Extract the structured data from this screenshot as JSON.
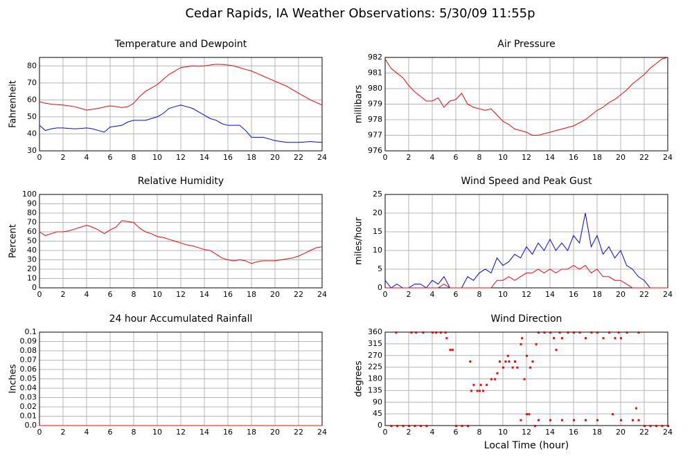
{
  "title": "Cedar Rapids, IA Weather Observations: 5/30/09 11:55p",
  "chart_data": [
    {
      "type": "line",
      "title": "Temperature and Dewpoint",
      "ylabel": "Fahrenheit",
      "x": [
        0,
        0.5,
        1,
        1.5,
        2,
        2.5,
        3,
        3.5,
        4,
        4.5,
        5,
        5.5,
        6,
        6.5,
        7,
        7.5,
        8,
        8.5,
        9,
        9.5,
        10,
        10.5,
        11,
        11.5,
        12,
        12.5,
        13,
        13.5,
        14,
        14.5,
        15,
        15.5,
        16,
        16.5,
        17,
        17.5,
        18,
        18.5,
        19,
        19.5,
        20,
        20.5,
        21,
        21.5,
        22,
        22.5,
        23,
        23.5,
        24
      ],
      "series": [
        {
          "color": "#ff0000",
          "values": [
            59,
            58,
            57.5,
            57.2,
            57,
            56.5,
            56,
            55,
            54,
            54.5,
            55,
            55.8,
            56.5,
            56,
            55.5,
            56,
            58,
            62,
            65,
            67,
            69,
            72,
            75,
            77,
            79,
            79.5,
            80,
            79.8,
            80,
            80.5,
            81,
            80.8,
            80.5,
            80,
            79,
            78,
            77,
            75.5,
            74,
            72.5,
            71,
            69.5,
            68,
            66,
            64,
            62,
            60,
            58.5,
            57
          ]
        },
        {
          "color": "#0000ff",
          "values": [
            45,
            42,
            43,
            43.5,
            43.5,
            43.2,
            43,
            43.2,
            43.5,
            43,
            42,
            41,
            44,
            44.5,
            45,
            47,
            48,
            48,
            48,
            49,
            50,
            52,
            55,
            56,
            57,
            56,
            55,
            53,
            51,
            49,
            48,
            46,
            45,
            45,
            45,
            42,
            38,
            38,
            38,
            37,
            36,
            35.5,
            35,
            35,
            35,
            35.2,
            35.5,
            35.2,
            35
          ]
        }
      ],
      "xlim": [
        0,
        24
      ],
      "xticks": [
        0,
        2,
        4,
        6,
        8,
        10,
        12,
        14,
        16,
        18,
        20,
        22,
        24
      ],
      "ylim": [
        30,
        85
      ],
      "yticks": [
        30,
        40,
        50,
        60,
        70,
        80
      ],
      "grid": true
    },
    {
      "type": "line",
      "title": "Air Pressure",
      "ylabel": "millibars",
      "x": [
        0,
        0.5,
        1,
        1.5,
        2,
        2.5,
        3,
        3.5,
        4,
        4.5,
        5,
        5.5,
        6,
        6.5,
        7,
        7.5,
        8,
        8.5,
        9,
        9.5,
        10,
        10.5,
        11,
        11.5,
        12,
        12.5,
        13,
        13.5,
        14,
        14.5,
        15,
        15.5,
        16,
        16.5,
        17,
        17.5,
        18,
        18.5,
        19,
        19.5,
        20,
        20.5,
        21,
        21.5,
        22,
        22.5,
        23,
        23.5,
        24
      ],
      "series": [
        {
          "color": "#ff0000",
          "values": [
            981.9,
            981.3,
            981,
            980.7,
            980.2,
            979.8,
            979.5,
            979.2,
            979.2,
            979.4,
            978.8,
            979.2,
            979.3,
            979.7,
            979,
            978.8,
            978.7,
            978.6,
            978.7,
            978.3,
            977.9,
            977.7,
            977.4,
            977.3,
            977.2,
            977,
            977,
            977.1,
            977.2,
            977.3,
            977.4,
            977.5,
            977.6,
            977.8,
            978,
            978.3,
            978.6,
            978.8,
            979.1,
            979.3,
            979.6,
            979.9,
            980.3,
            980.6,
            980.9,
            981.3,
            981.6,
            981.9,
            982
          ]
        }
      ],
      "xlim": [
        0,
        24
      ],
      "xticks": [
        0,
        2,
        4,
        6,
        8,
        10,
        12,
        14,
        16,
        18,
        20,
        22,
        24
      ],
      "ylim": [
        976,
        982
      ],
      "yticks": [
        976,
        977,
        978,
        979,
        980,
        981,
        982
      ],
      "grid": true
    },
    {
      "type": "line",
      "title": "Relative Humidity",
      "ylabel": "Percent",
      "x": [
        0,
        0.5,
        1,
        1.5,
        2,
        2.5,
        3,
        3.5,
        4,
        4.5,
        5,
        5.5,
        6,
        6.5,
        7,
        7.5,
        8,
        8.5,
        9,
        9.5,
        10,
        10.5,
        11,
        11.5,
        12,
        12.5,
        13,
        13.5,
        14,
        14.5,
        15,
        15.5,
        16,
        16.5,
        17,
        17.5,
        18,
        18.5,
        19,
        19.5,
        20,
        20.5,
        21,
        21.5,
        22,
        22.5,
        23,
        23.5,
        24
      ],
      "series": [
        {
          "color": "#ff0000",
          "values": [
            60,
            56,
            58,
            60,
            60,
            61,
            63,
            65,
            67,
            65,
            62,
            58,
            62,
            65,
            72,
            71,
            70,
            64,
            60,
            58,
            55,
            54,
            52,
            50,
            48,
            46,
            45,
            43,
            41,
            40,
            36,
            32,
            30,
            29,
            30,
            29,
            26,
            28,
            29,
            29,
            29,
            30,
            31,
            32,
            34,
            37,
            40,
            43,
            44
          ]
        }
      ],
      "xlim": [
        0,
        24
      ],
      "xticks": [
        0,
        2,
        4,
        6,
        8,
        10,
        12,
        14,
        16,
        18,
        20,
        22,
        24
      ],
      "ylim": [
        0,
        100
      ],
      "yticks": [
        0,
        10,
        20,
        30,
        40,
        50,
        60,
        70,
        80,
        90,
        100
      ],
      "grid": true
    },
    {
      "type": "line",
      "title": "Wind Speed and Peak Gust",
      "ylabel": "miles/hour",
      "x": [
        0,
        0.5,
        1,
        1.5,
        2,
        2.5,
        3,
        3.5,
        4,
        4.5,
        5,
        5.5,
        6,
        6.5,
        7,
        7.5,
        8,
        8.5,
        9,
        9.5,
        10,
        10.5,
        11,
        11.5,
        12,
        12.5,
        13,
        13.5,
        14,
        14.5,
        15,
        15.5,
        16,
        16.5,
        17,
        17.5,
        18,
        18.5,
        19,
        19.5,
        20,
        20.5,
        21,
        21.5,
        22,
        22.5,
        23,
        23.5,
        24
      ],
      "series": [
        {
          "color": "#0000ff",
          "values": [
            2,
            0,
            1,
            0,
            0,
            1,
            1,
            0,
            2,
            1,
            3,
            0,
            0,
            0,
            3,
            2,
            4,
            5,
            4,
            8,
            6,
            7,
            9,
            8,
            11,
            9,
            12,
            10,
            13,
            10,
            12,
            10,
            14,
            12,
            20,
            11,
            14,
            9,
            11,
            8,
            10,
            6,
            5,
            3,
            2,
            0,
            0,
            0,
            0
          ]
        },
        {
          "color": "#ff0000",
          "values": [
            0,
            0,
            0,
            0,
            0,
            0,
            0,
            0,
            0,
            0,
            1,
            0,
            0,
            0,
            0,
            0,
            0,
            0,
            0,
            2,
            2,
            3,
            2,
            3,
            4,
            4,
            5,
            4,
            5,
            4,
            5,
            5,
            6,
            5,
            6,
            4,
            5,
            3,
            3,
            2,
            2,
            1,
            0,
            0,
            0,
            0,
            0,
            0,
            0
          ]
        }
      ],
      "xlim": [
        0,
        24
      ],
      "xticks": [
        0,
        2,
        4,
        6,
        8,
        10,
        12,
        14,
        16,
        18,
        20,
        22,
        24
      ],
      "ylim": [
        0,
        25
      ],
      "yticks": [
        0,
        5,
        10,
        15,
        20,
        25
      ],
      "grid": true
    },
    {
      "type": "line",
      "title": "24 hour Accumulated Rainfall",
      "ylabel": "Inches",
      "x": [
        0,
        24
      ],
      "series": [
        {
          "color": "#ff0000",
          "values": [
            0,
            0
          ]
        }
      ],
      "xlim": [
        0,
        24
      ],
      "xticks": [
        0,
        2,
        4,
        6,
        8,
        10,
        12,
        14,
        16,
        18,
        20,
        22,
        24
      ],
      "ylim": [
        0,
        0.1
      ],
      "yticks": [
        {
          "value": 0,
          "label": "0.0"
        },
        0.01,
        0.02,
        0.03,
        0.04,
        0.05,
        0.06,
        0.07,
        0.08,
        0.09,
        0.1
      ],
      "grid": true
    },
    {
      "type": "scatter",
      "title": "Wind Direction",
      "ylabel": "degrees",
      "xlabel": "Local Time (hour)",
      "series": [
        {
          "color": "#ff0000",
          "x": [
            0.5,
            1,
            1.5,
            2,
            2.5,
            3,
            3.5,
            0.9,
            2.2,
            2.6,
            3.2,
            4,
            4.3,
            4.7,
            5.1,
            5.2,
            5.5,
            5.7,
            6,
            6.5,
            7,
            7.2,
            7.3,
            7.5,
            7.8,
            8,
            8.1,
            8.3,
            8.6,
            9,
            9.3,
            9.5,
            9.7,
            10,
            10.2,
            10.4,
            10.5,
            10.8,
            11,
            11.2,
            11.5,
            11.6,
            11.8,
            12,
            12,
            12.3,
            12.5,
            12.7,
            12.8,
            13,
            13.5,
            14,
            14.3,
            14.5,
            14.8,
            15,
            15.5,
            16,
            16.5,
            17,
            17.5,
            18,
            18.5,
            19,
            19.3,
            19.5,
            19.8,
            20,
            20.5,
            21,
            21.3,
            21.5,
            22,
            22.5,
            23,
            23.5,
            24,
            14,
            15,
            16,
            17,
            13,
            18,
            20,
            21.5,
            11.5,
            12.2
          ],
          "values": [
            0,
            0,
            0,
            0,
            0,
            0,
            0,
            360,
            360,
            360,
            360,
            360,
            360,
            360,
            360,
            338,
            293,
            293,
            0,
            0,
            0,
            248,
            135,
            158,
            135,
            135,
            158,
            135,
            158,
            180,
            180,
            203,
            248,
            225,
            248,
            270,
            248,
            225,
            248,
            225,
            315,
            338,
            180,
            270,
            45,
            225,
            248,
            0,
            315,
            360,
            360,
            360,
            338,
            293,
            360,
            338,
            360,
            360,
            360,
            338,
            360,
            360,
            338,
            360,
            45,
            338,
            360,
            338,
            360,
            22,
            68,
            360,
            0,
            0,
            0,
            0,
            0,
            22,
            22,
            22,
            22,
            22,
            22,
            22,
            22,
            22,
            45
          ]
        }
      ],
      "xlim": [
        0,
        24
      ],
      "xticks": [
        0,
        2,
        4,
        6,
        8,
        10,
        12,
        14,
        16,
        18,
        20,
        22,
        24
      ],
      "ylim": [
        0,
        360
      ],
      "yticks": [
        0,
        45,
        90,
        135,
        180,
        225,
        270,
        315,
        360
      ],
      "grid": true
    }
  ]
}
